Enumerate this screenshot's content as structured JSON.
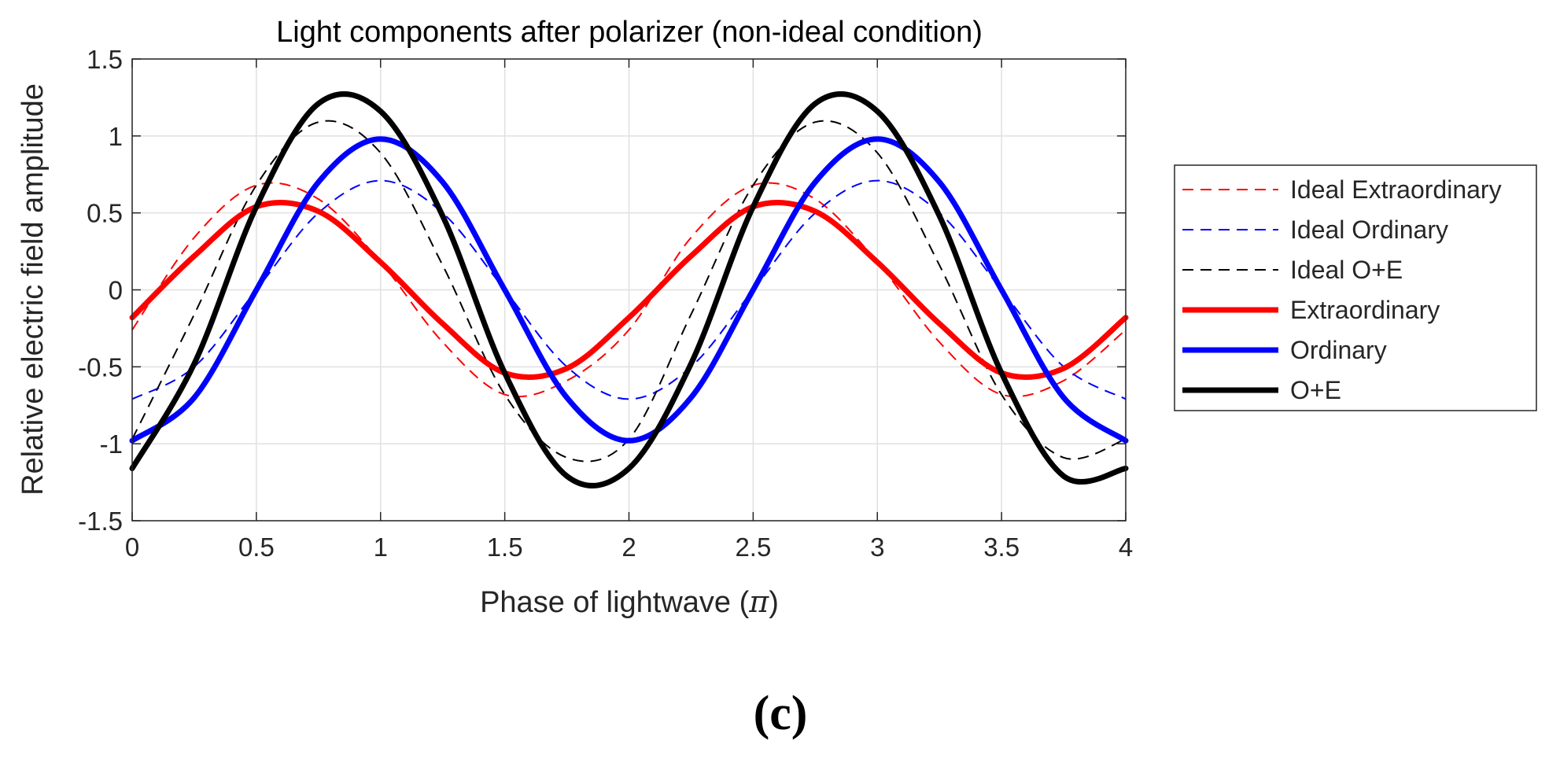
{
  "panel_label": "(c)",
  "chart_data": {
    "type": "line",
    "title": "Light components after polarizer (non-ideal condition)",
    "xlabel": "Phase of lightwave (",
    "xlabel_symbol": "π",
    "xlabel_suffix": ")",
    "ylabel": "Relative electric field amplitude",
    "xlim": [
      0,
      4
    ],
    "ylim": [
      -1.5,
      1.5
    ],
    "x_ticks": [
      0,
      0.5,
      1,
      1.5,
      2,
      2.5,
      3,
      3.5,
      4
    ],
    "x_tick_labels": [
      "0",
      "0.5",
      "1",
      "1.5",
      "2",
      "2.5",
      "3",
      "3.5",
      "4"
    ],
    "y_ticks": [
      -1.5,
      -1,
      -0.5,
      0,
      0.5,
      1,
      1.5
    ],
    "y_tick_labels": [
      "-1.5",
      "-1",
      "-0.5",
      "0",
      "0.5",
      "1",
      "1.5"
    ],
    "grid": true,
    "legend_position": "outside-right",
    "series": [
      {
        "name": "Ideal Extraordinary",
        "color": "#ff0000",
        "dashed": true,
        "line": "thin",
        "x": [
          0,
          0.25,
          0.5,
          0.75,
          1,
          1.25,
          1.5,
          1.75,
          2,
          2.25,
          2.5,
          2.75,
          3,
          3.25,
          3.5,
          3.75,
          4
        ],
        "y": [
          -0.26,
          0.34,
          0.68,
          0.59,
          0.18,
          -0.34,
          -0.68,
          -0.59,
          -0.26,
          0.34,
          0.68,
          0.59,
          0.18,
          -0.34,
          -0.68,
          -0.59,
          -0.26
        ]
      },
      {
        "name": "Ideal Ordinary",
        "color": "#0000ff",
        "dashed": true,
        "line": "thin",
        "x": [
          0,
          0.25,
          0.5,
          0.75,
          1,
          1.25,
          1.5,
          1.75,
          2,
          2.25,
          2.5,
          2.75,
          3,
          3.25,
          3.5,
          3.75,
          4
        ],
        "y": [
          -0.71,
          -0.5,
          0,
          0.5,
          0.71,
          0.5,
          0,
          -0.5,
          -0.71,
          -0.5,
          0,
          0.5,
          0.71,
          0.5,
          0,
          -0.5,
          -0.71
        ]
      },
      {
        "name": "Ideal O+E",
        "color": "#000000",
        "dashed": true,
        "line": "thin",
        "x": [
          0,
          0.25,
          0.5,
          0.75,
          1,
          1.25,
          1.5,
          1.75,
          2,
          2.25,
          2.5,
          2.75,
          3,
          3.25,
          3.5,
          3.75,
          4
        ],
        "y": [
          -0.97,
          -0.16,
          0.68,
          1.09,
          0.89,
          0.16,
          -0.68,
          -1.09,
          -0.97,
          -0.16,
          0.68,
          1.09,
          0.89,
          0.16,
          -0.68,
          -1.09,
          -0.97
        ]
      },
      {
        "name": "Extraordinary",
        "color": "#ff0000",
        "dashed": false,
        "line": "thick",
        "x": [
          0,
          0.25,
          0.5,
          0.75,
          1,
          1.25,
          1.5,
          1.75,
          2,
          2.25,
          2.5,
          2.75,
          3,
          3.25,
          3.5,
          3.75,
          4
        ],
        "y": [
          -0.18,
          0.22,
          0.54,
          0.51,
          0.18,
          -0.22,
          -0.54,
          -0.51,
          -0.18,
          0.22,
          0.54,
          0.51,
          0.18,
          -0.22,
          -0.54,
          -0.51,
          -0.18
        ]
      },
      {
        "name": "Ordinary",
        "color": "#0000ff",
        "dashed": false,
        "line": "thick",
        "x": [
          0,
          0.25,
          0.5,
          0.75,
          1,
          1.25,
          1.5,
          1.75,
          2,
          2.25,
          2.5,
          2.75,
          3,
          3.25,
          3.5,
          3.75,
          4
        ],
        "y": [
          -0.98,
          -0.7,
          0,
          0.7,
          0.98,
          0.7,
          0,
          -0.7,
          -0.98,
          -0.7,
          0,
          0.7,
          0.98,
          0.7,
          0,
          -0.7,
          -0.98
        ]
      },
      {
        "name": "O+E",
        "color": "#000000",
        "dashed": false,
        "line": "thick",
        "x": [
          0,
          0.25,
          0.5,
          0.75,
          1,
          1.25,
          1.5,
          1.75,
          2,
          2.25,
          2.5,
          2.75,
          3,
          3.25,
          3.5,
          3.75,
          4
        ],
        "y": [
          -1.16,
          -0.48,
          0.54,
          1.21,
          1.16,
          0.48,
          -0.54,
          -1.21,
          -1.16,
          -0.48,
          0.54,
          1.21,
          1.16,
          0.48,
          -0.54,
          -1.21,
          -1.16
        ]
      }
    ]
  }
}
